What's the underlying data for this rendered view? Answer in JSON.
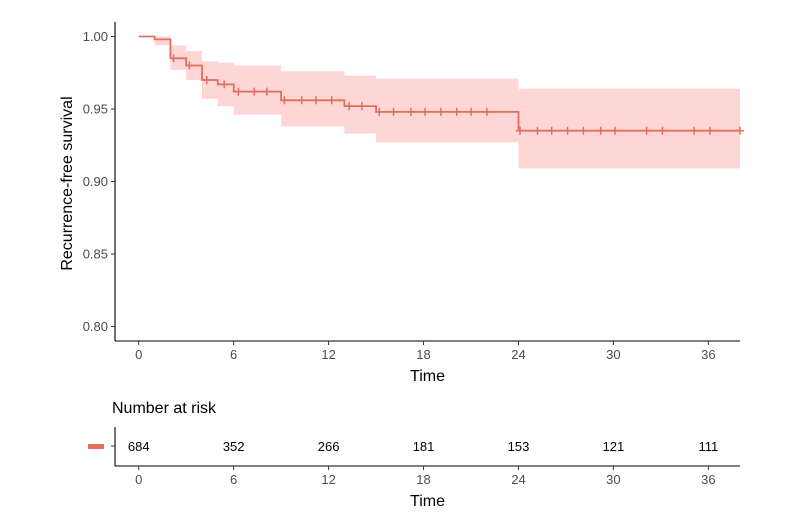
{
  "chart_data": [
    {
      "type": "line",
      "subtype": "kaplan-meier",
      "title": "",
      "xlabel": "Time",
      "ylabel": "Recurrence-free survival",
      "xlim": [
        -1.5,
        38
      ],
      "ylim": [
        0.79,
        1.01
      ],
      "x_ticks": [
        0,
        6,
        12,
        18,
        24,
        30,
        36
      ],
      "y_ticks": [
        0.8,
        0.85,
        0.9,
        0.95,
        1.0
      ],
      "y_tick_labels": [
        "0.80",
        "0.85",
        "0.90",
        "0.95",
        "1.00"
      ],
      "grid": false,
      "legend": "none",
      "series": [
        {
          "color": "#e0705c",
          "ci_color": "#ffd6d6",
          "steps": [
            {
              "t": 0,
              "s": 1.0,
              "lo": 1.0,
              "hi": 1.0
            },
            {
              "t": 1,
              "s": 0.998,
              "lo": 0.994,
              "hi": 1.0
            },
            {
              "t": 2,
              "s": 0.985,
              "lo": 0.977,
              "hi": 0.994
            },
            {
              "t": 3,
              "s": 0.98,
              "lo": 0.97,
              "hi": 0.99
            },
            {
              "t": 4,
              "s": 0.97,
              "lo": 0.957,
              "hi": 0.983
            },
            {
              "t": 5,
              "s": 0.967,
              "lo": 0.952,
              "hi": 0.982
            },
            {
              "t": 6,
              "s": 0.962,
              "lo": 0.946,
              "hi": 0.98
            },
            {
              "t": 9,
              "s": 0.956,
              "lo": 0.938,
              "hi": 0.976
            },
            {
              "t": 13,
              "s": 0.952,
              "lo": 0.933,
              "hi": 0.973
            },
            {
              "t": 15,
              "s": 0.948,
              "lo": 0.927,
              "hi": 0.971
            },
            {
              "t": 24,
              "s": 0.935,
              "lo": 0.909,
              "hi": 0.964
            }
          ],
          "end_time": 38,
          "censor_times": [
            2.2,
            3.2,
            4.3,
            5.4,
            6.3,
            7.3,
            8.1,
            9.2,
            10.3,
            11.2,
            12.2,
            13.3,
            14.1,
            15.2,
            16.1,
            17.2,
            18.1,
            19.1,
            20.1,
            21.0,
            22.0,
            24.1,
            25.2,
            26.1,
            27.1,
            28.1,
            29.2,
            30.1,
            32.1,
            33.1,
            35.1,
            36.1,
            38.0
          ]
        }
      ]
    },
    {
      "type": "table",
      "title": "Number at risk",
      "xlabel": "Time",
      "x_ticks": [
        0,
        6,
        12,
        18,
        24,
        30,
        36
      ],
      "strata_color": "#e0705c",
      "times": [
        0,
        6,
        12,
        18,
        24,
        30,
        36
      ],
      "counts": [
        "684",
        "352",
        "266",
        "181",
        "153",
        "121",
        "111"
      ]
    }
  ]
}
